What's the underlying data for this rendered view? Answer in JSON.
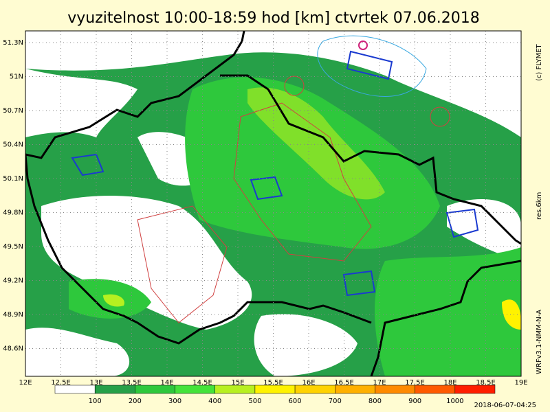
{
  "title": "vyuzitelnost 10:00-18:59 hod [km] ctvrtek 07.06.2018",
  "credit": "(c) FLYMET",
  "resolution": "res.6km",
  "model": "WRFv3.1-NMM-N-A",
  "timestamp": "2018-06-07-04:25",
  "lat_labels": [
    "51.3N",
    "51N",
    "50.7N",
    "50.4N",
    "50.1N",
    "49.8N",
    "49.5N",
    "49.2N",
    "48.9N",
    "48.6N"
  ],
  "lon_labels": [
    "12E",
    "12.5E",
    "13E",
    "13.5E",
    "14E",
    "14.5E",
    "15E",
    "15.5E",
    "16E",
    "16.5E",
    "17E",
    "17.5E",
    "18E",
    "18.5E",
    "19E"
  ],
  "legend": {
    "labels": [
      100,
      200,
      300,
      400,
      500,
      600,
      700,
      800,
      900,
      1000
    ],
    "colors": [
      "#ffffff",
      "#26a048",
      "#2ec83c",
      "#44e33a",
      "#b7f020",
      "#fff200",
      "#ffd200",
      "#ffb000",
      "#ff8a00",
      "#ff5a00",
      "#ff1e00"
    ]
  }
}
